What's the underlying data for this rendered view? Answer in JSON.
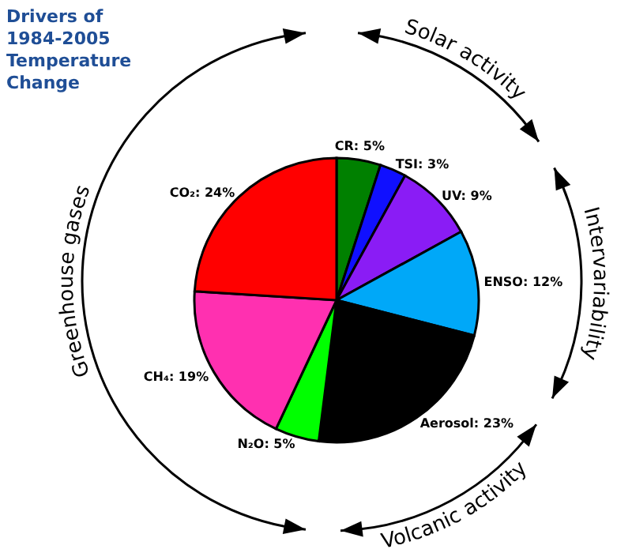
{
  "chart_data": {
    "type": "pie",
    "title": "Drivers of 1984-2005 Temperature Change",
    "categories": [
      "CR",
      "TSI",
      "UV",
      "ENSO",
      "Aerosol",
      "N₂O",
      "CH₄",
      "CO₂"
    ],
    "values": [
      5,
      3,
      9,
      12,
      23,
      5,
      19,
      24
    ],
    "colors": [
      "#008000",
      "#1010ff",
      "#8a1cf5",
      "#00a8f8",
      "#000000",
      "#00ff00",
      "#ff30b0",
      "#ff0000"
    ],
    "value_labels": [
      "5%",
      "3%",
      "9%",
      "12%",
      "23%",
      "5%",
      "19%",
      "24%"
    ],
    "annotations": [
      "Solar activity",
      "Intervariability",
      "Volcanic activity",
      "Greenhouse gases"
    ]
  }
}
